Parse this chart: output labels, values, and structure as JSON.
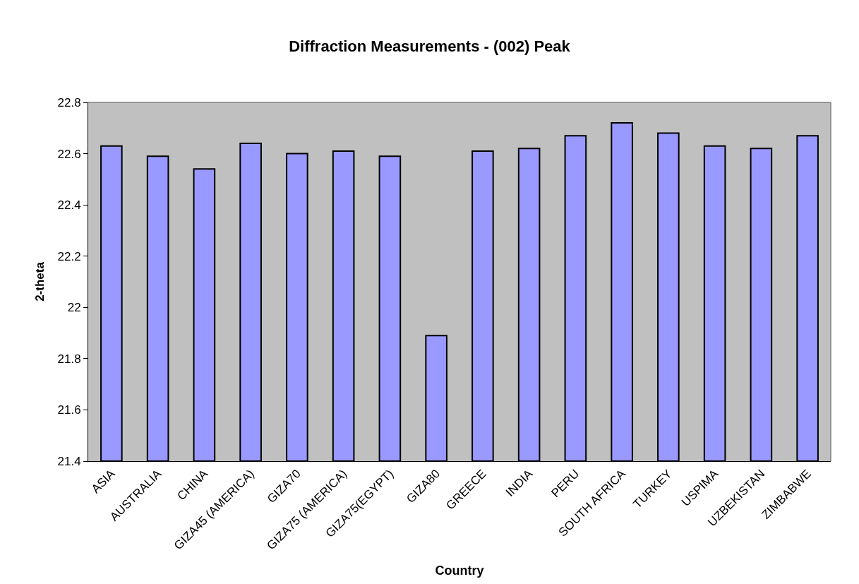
{
  "chart_data": {
    "type": "bar",
    "title": "Diffraction Measurements - (002) Peak",
    "xlabel": "Country",
    "ylabel": "2-theta",
    "categories": [
      "ASIA",
      "AUSTRALIA",
      "CHINA",
      "GIZA45 (AMERICA)",
      "GIZA70",
      "GIZA75 (AMERICA)",
      "GIZA75(EGYPT)",
      "GIZA80",
      "GREECE",
      "INDIA",
      "PERU",
      "SOUTH AFRICA",
      "TURKEY",
      "USPIMA",
      "UZBEKISTAN",
      "ZIMBABWE"
    ],
    "values": [
      22.63,
      22.59,
      22.54,
      22.64,
      22.6,
      22.61,
      22.59,
      21.89,
      22.61,
      22.62,
      22.67,
      22.72,
      22.68,
      22.63,
      22.62,
      22.67
    ],
    "color": "#9999ff",
    "ylim": [
      21.4,
      22.8
    ],
    "yticks": [
      21.4,
      21.6,
      21.8,
      22,
      22.2,
      22.4,
      22.6,
      22.8
    ],
    "grid": false,
    "legend": false
  }
}
